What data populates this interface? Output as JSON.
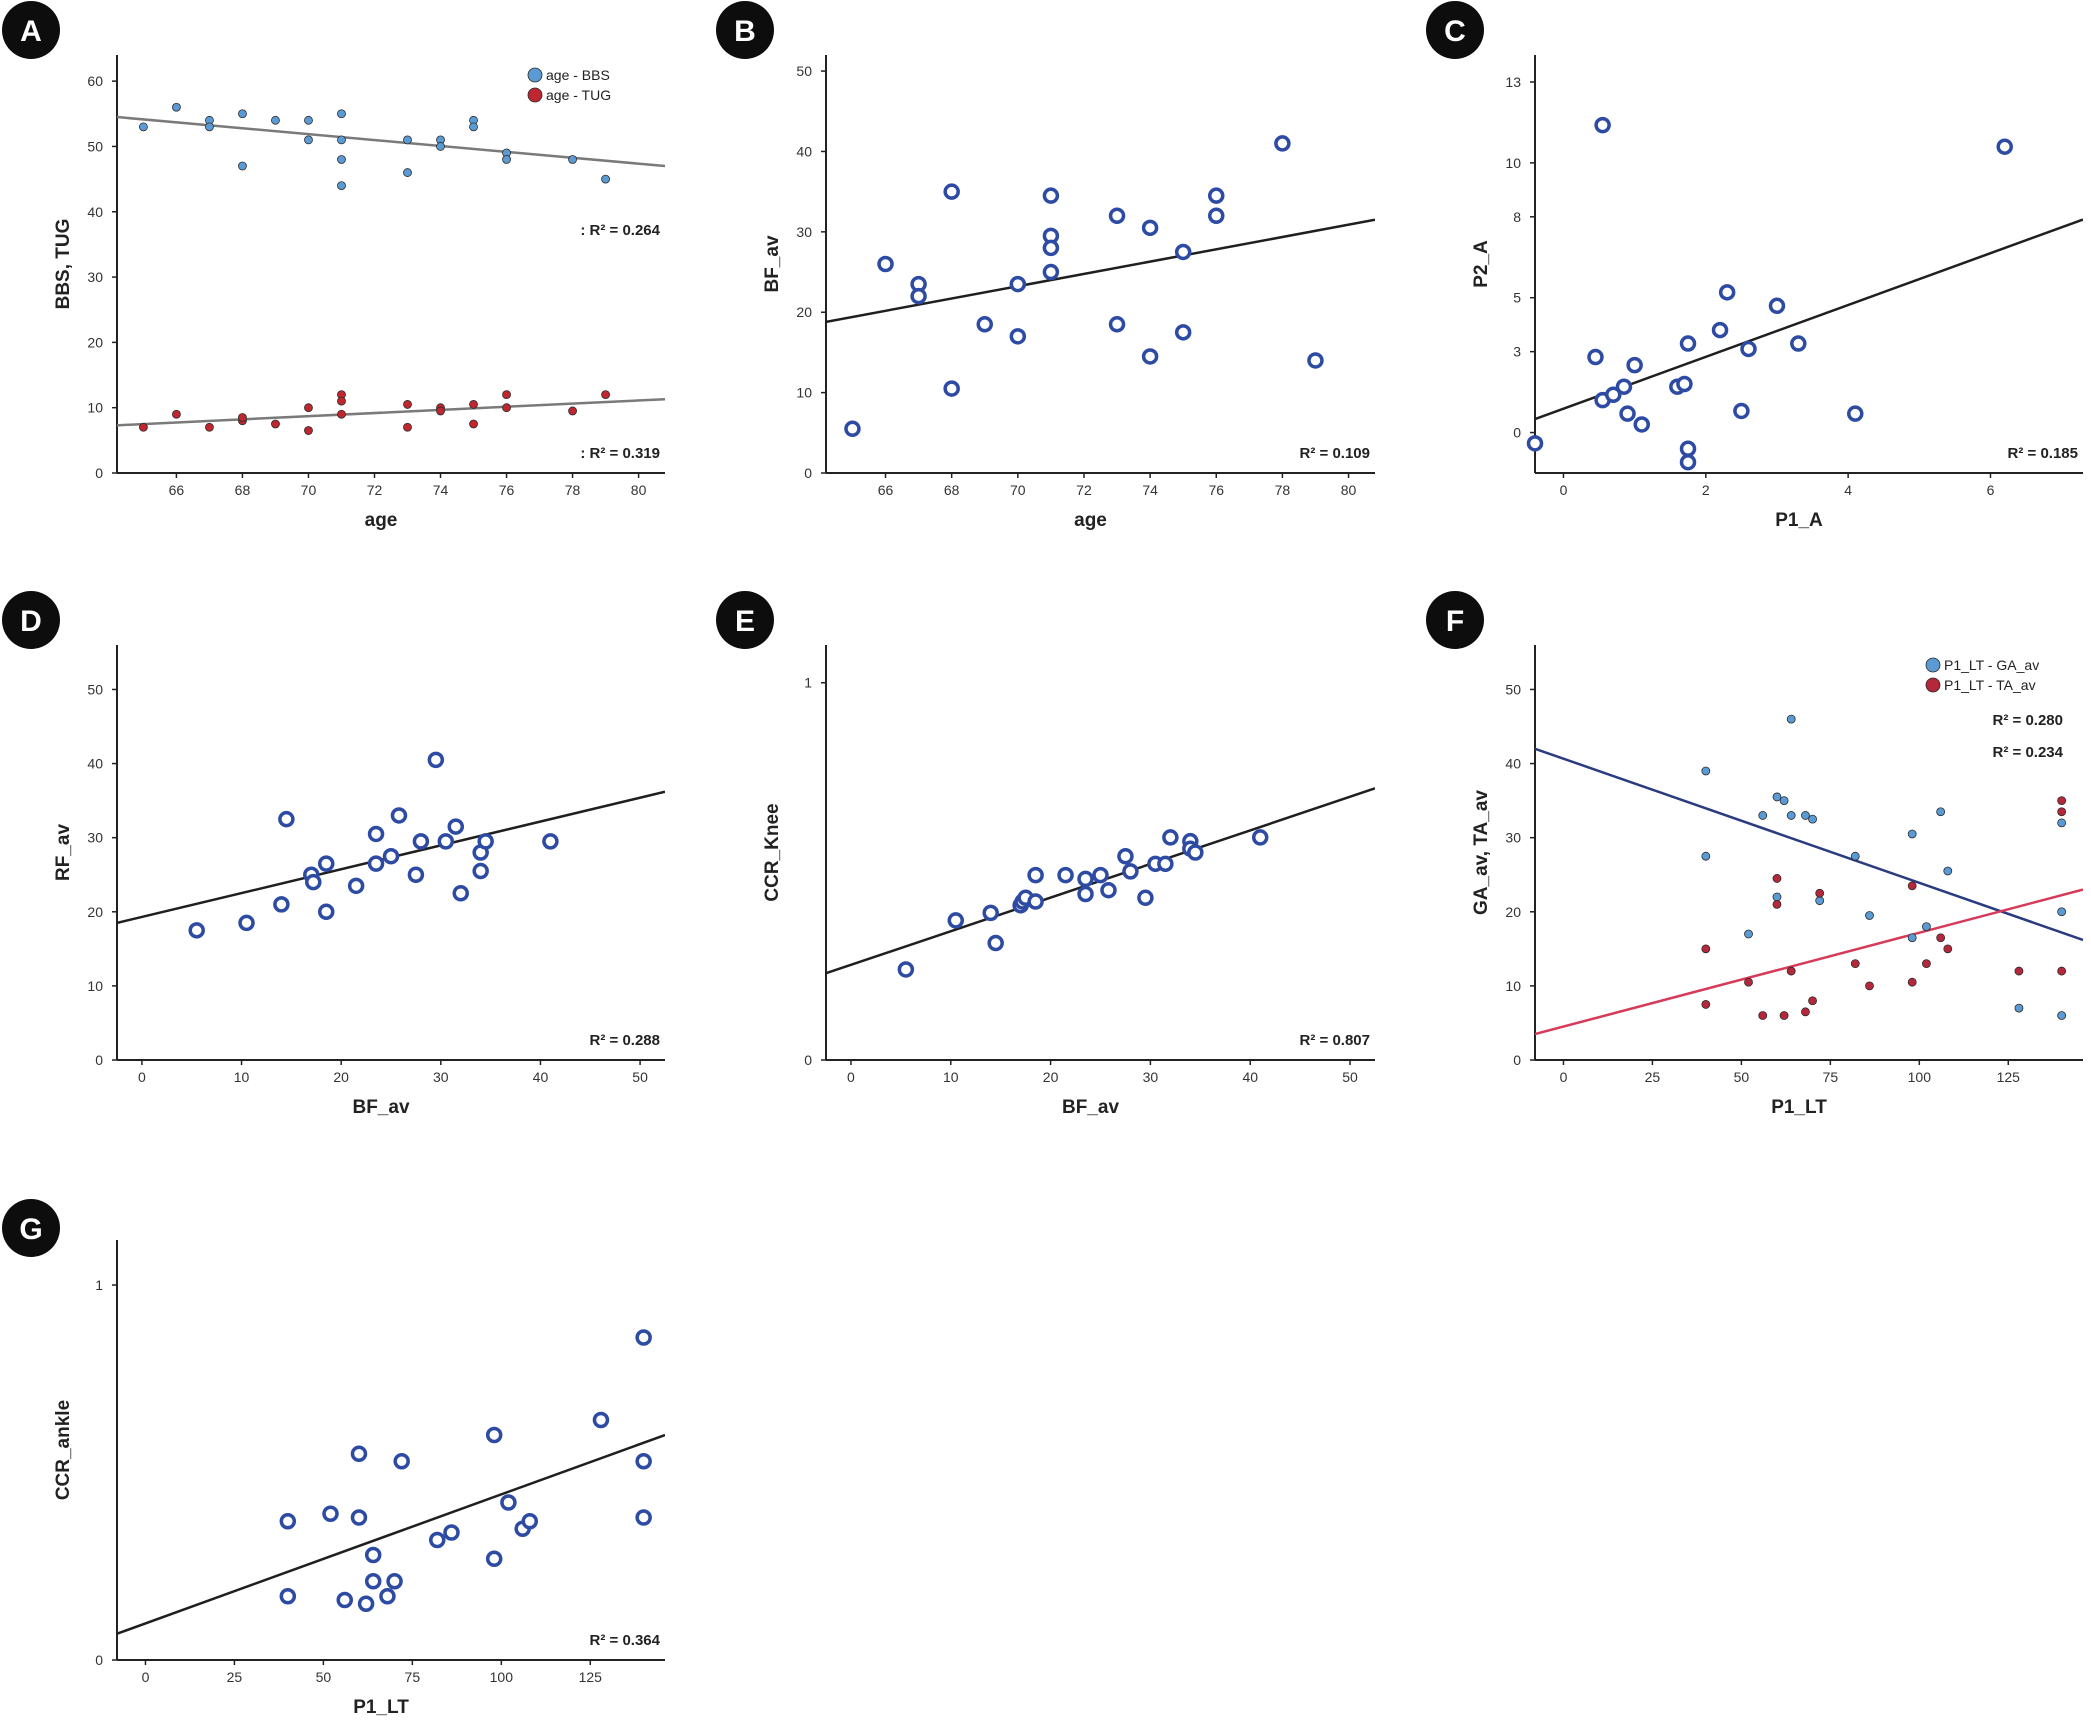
{
  "chart_data": [
    {
      "panel": "A",
      "type": "scatter",
      "xlabel": "age",
      "ylabel": "BBS, TUG",
      "xlim": [
        64.2,
        80.8
      ],
      "ylim": [
        0,
        64
      ],
      "xticks": [
        66,
        68,
        70,
        72,
        74,
        76,
        78,
        80
      ],
      "yticks": [
        0,
        10,
        20,
        30,
        40,
        50,
        60
      ],
      "marker": "dot",
      "legend": "top-right",
      "r2_labels": [
        ": R² = 0.264",
        ": R² = 0.319"
      ],
      "series": [
        {
          "name": "age - BBS",
          "color": "#5b9bd5",
          "x": [
            65,
            66,
            67,
            67,
            68,
            68,
            69,
            70,
            70,
            71,
            71,
            71,
            71,
            73,
            73,
            74,
            74,
            75,
            75,
            76,
            76,
            78,
            79
          ],
          "y": [
            53,
            56,
            54,
            53,
            55,
            47,
            54,
            54,
            51,
            55,
            51,
            48,
            44,
            51,
            46,
            51,
            50,
            54,
            53,
            49,
            48,
            48,
            45
          ],
          "fit": [
            [
              64.2,
              54.5
            ],
            [
              80.8,
              47.0
            ]
          ]
        },
        {
          "name": "age - TUG",
          "color": "#c0262f",
          "x": [
            65,
            66,
            67,
            68,
            68,
            69,
            70,
            70,
            71,
            71,
            71,
            73,
            73,
            74,
            74,
            75,
            75,
            76,
            76,
            78,
            79
          ],
          "y": [
            7,
            9,
            7,
            8,
            8.5,
            7.5,
            10,
            6.5,
            12,
            11,
            9,
            10.5,
            7,
            10,
            9.5,
            10.5,
            7.5,
            12,
            10,
            9.5,
            12
          ],
          "fit": [
            [
              64.2,
              7.3
            ],
            [
              80.8,
              11.3
            ]
          ]
        }
      ]
    },
    {
      "panel": "B",
      "type": "scatter",
      "xlabel": "age",
      "ylabel": "BF_av",
      "xlim": [
        64.2,
        80.8
      ],
      "ylim": [
        0,
        52
      ],
      "xticks": [
        66,
        68,
        70,
        72,
        74,
        76,
        78,
        80
      ],
      "yticks": [
        0,
        10,
        20,
        30,
        40,
        50
      ],
      "marker": "ring",
      "r2_labels": [
        "R² = 0.109"
      ],
      "series": [
        {
          "color": "#2e4ba3",
          "x": [
            65,
            66,
            67,
            67,
            68,
            68,
            69,
            70,
            70,
            71,
            71,
            71,
            71,
            73,
            73,
            74,
            74,
            75,
            75,
            76,
            76,
            78,
            79
          ],
          "y": [
            5.5,
            26,
            23.5,
            22,
            35,
            10.5,
            18.5,
            23.5,
            17,
            34.5,
            29.5,
            28,
            25,
            32,
            18.5,
            30.5,
            14.5,
            27.5,
            17.5,
            34.5,
            32,
            41,
            14
          ],
          "fit": [
            [
              64.2,
              18.8
            ],
            [
              80.8,
              31.5
            ]
          ]
        }
      ]
    },
    {
      "panel": "C",
      "type": "scatter",
      "xlabel": "P1_A",
      "ylabel": "P2_A",
      "xlim": [
        -0.4,
        7.3
      ],
      "ylim": [
        -1.5,
        14
      ],
      "xticks": [
        0,
        2,
        4,
        6
      ],
      "yticks": [
        0,
        3,
        5,
        8,
        10,
        13
      ],
      "marker": "ring",
      "r2_labels": [
        "R² = 0.185"
      ],
      "series": [
        {
          "color": "#2e4ba3",
          "x": [
            -0.4,
            0.45,
            0.55,
            0.55,
            0.7,
            0.85,
            0.9,
            1.0,
            1.1,
            1.6,
            1.7,
            1.75,
            1.75,
            1.75,
            2.2,
            2.3,
            2.5,
            2.6,
            3.0,
            3.3,
            4.1,
            6.2
          ],
          "y": [
            -0.4,
            2.8,
            1.2,
            11.4,
            1.4,
            1.7,
            0.7,
            2.5,
            0.3,
            1.7,
            1.8,
            3.3,
            -0.6,
            -1.1,
            3.8,
            5.2,
            0.8,
            3.1,
            4.7,
            3.3,
            0.7,
            10.6
          ],
          "fit": [
            [
              -0.4,
              0.5
            ],
            [
              7.3,
              7.9
            ]
          ]
        }
      ]
    },
    {
      "panel": "D",
      "type": "scatter",
      "xlabel": "BF_av",
      "ylabel": "RF_av",
      "xlim": [
        -2.5,
        52.5
      ],
      "ylim": [
        0,
        56
      ],
      "xticks": [
        0,
        10,
        20,
        30,
        40,
        50
      ],
      "yticks": [
        0,
        10,
        20,
        30,
        40,
        50
      ],
      "marker": "ring",
      "r2_labels": [
        "R² = 0.288"
      ],
      "series": [
        {
          "color": "#2e4ba3",
          "x": [
            5.5,
            10.5,
            14,
            14.5,
            17,
            17.2,
            18.5,
            18.5,
            21.5,
            23.5,
            23.5,
            25,
            25.8,
            27.5,
            28,
            29.5,
            30.5,
            31.5,
            32,
            34,
            34,
            34.5,
            41
          ],
          "y": [
            17.5,
            18.5,
            21,
            32.5,
            25,
            24,
            26.5,
            20,
            23.5,
            30.5,
            26.5,
            27.5,
            33,
            25,
            29.5,
            40.5,
            29.5,
            31.5,
            22.5,
            28,
            25.5,
            29.5,
            29.5
          ],
          "fit": [
            [
              -2.5,
              18.5
            ],
            [
              52.5,
              36.2
            ]
          ]
        }
      ]
    },
    {
      "panel": "E",
      "type": "scatter",
      "xlabel": "BF_av",
      "ylabel": "CCR_Knee",
      "xlim": [
        -2.5,
        52.5
      ],
      "ylim": [
        0,
        1.1
      ],
      "xticks": [
        0,
        10,
        20,
        30,
        40,
        50
      ],
      "yticks": [
        0,
        1
      ],
      "marker": "ring",
      "r2_labels": [
        "R² = 0.807"
      ],
      "series": [
        {
          "color": "#2e4ba3",
          "x": [
            5.5,
            10.5,
            14,
            14.5,
            17,
            17.2,
            17.5,
            18.5,
            18.5,
            21.5,
            23.5,
            23.5,
            25,
            25.8,
            27.5,
            28,
            29.5,
            30.5,
            31.5,
            32,
            34,
            34,
            34.5,
            41
          ],
          "y": [
            0.24,
            0.37,
            0.39,
            0.31,
            0.41,
            0.42,
            0.43,
            0.42,
            0.49,
            0.49,
            0.48,
            0.44,
            0.49,
            0.45,
            0.54,
            0.5,
            0.43,
            0.52,
            0.52,
            0.59,
            0.58,
            0.56,
            0.55,
            0.59
          ],
          "fit": [
            [
              -2.5,
              0.23
            ],
            [
              52.5,
              0.72
            ]
          ]
        }
      ]
    },
    {
      "panel": "F",
      "type": "scatter",
      "xlabel": "P1_LT",
      "ylabel": "GA_av,  TA_av",
      "xlim": [
        -8,
        146
      ],
      "ylim": [
        0,
        56
      ],
      "xticks": [
        0,
        25,
        50,
        75,
        100,
        125
      ],
      "yticks": [
        0,
        10,
        20,
        30,
        40,
        50
      ],
      "marker": "dot",
      "legend": "top-right",
      "r2_labels": [
        "R² = 0.280",
        "R² = 0.234"
      ],
      "series": [
        {
          "name": "P1_LT - GA_av",
          "color": "#5b9bd5",
          "fitcolor": "#2a3b7f",
          "x": [
            40,
            40,
            52,
            56,
            60,
            60,
            62,
            64,
            64,
            68,
            70,
            72,
            82,
            86,
            98,
            98,
            102,
            106,
            108,
            128,
            140,
            140,
            140
          ],
          "y": [
            39,
            27.5,
            17,
            33,
            35.5,
            22,
            35,
            46,
            33,
            33,
            32.5,
            21.5,
            27.5,
            19.5,
            30.5,
            16.5,
            18,
            33.5,
            25.5,
            7,
            32,
            20,
            6
          ],
          "fit": [
            [
              -8,
              42.0
            ],
            [
              146,
              16.2
            ]
          ]
        },
        {
          "name": "P1_LT - TA_av",
          "color": "#b5283b",
          "fitcolor": "#d63a58",
          "x": [
            40,
            40,
            52,
            56,
            60,
            60,
            62,
            64,
            68,
            70,
            72,
            82,
            86,
            98,
            98,
            102,
            106,
            108,
            128,
            140,
            140,
            140
          ],
          "y": [
            15,
            7.5,
            10.5,
            6,
            24.5,
            21,
            6,
            12,
            6.5,
            8,
            22.5,
            13,
            10,
            10.5,
            23.5,
            13,
            16.5,
            15,
            12,
            35,
            33.5,
            12
          ],
          "fit": [
            [
              -8,
              3.5
            ],
            [
              146,
              23.0
            ]
          ]
        }
      ]
    },
    {
      "panel": "G",
      "type": "scatter",
      "xlabel": "P1_LT",
      "ylabel": "CCR_ankle",
      "xlim": [
        -8,
        146
      ],
      "ylim": [
        0,
        1.12
      ],
      "xticks": [
        0,
        25,
        50,
        75,
        100,
        125
      ],
      "yticks": [
        0,
        1
      ],
      "marker": "ring",
      "r2_labels": [
        "R² = 0.364"
      ],
      "series": [
        {
          "color": "#2e4ba3",
          "x": [
            40,
            40,
            52,
            56,
            60,
            60,
            62,
            64,
            64,
            68,
            70,
            72,
            82,
            86,
            98,
            98,
            102,
            106,
            108,
            128,
            140,
            140,
            140
          ],
          "y": [
            0.37,
            0.17,
            0.39,
            0.16,
            0.38,
            0.55,
            0.15,
            0.28,
            0.21,
            0.17,
            0.21,
            0.53,
            0.32,
            0.34,
            0.6,
            0.27,
            0.42,
            0.35,
            0.37,
            0.64,
            0.86,
            0.53,
            0.38
          ],
          "fit": [
            [
              -8,
              0.07
            ],
            [
              146,
              0.6
            ]
          ]
        }
      ]
    }
  ],
  "panel_labels": [
    "A",
    "B",
    "C",
    "D",
    "E",
    "F",
    "G"
  ]
}
